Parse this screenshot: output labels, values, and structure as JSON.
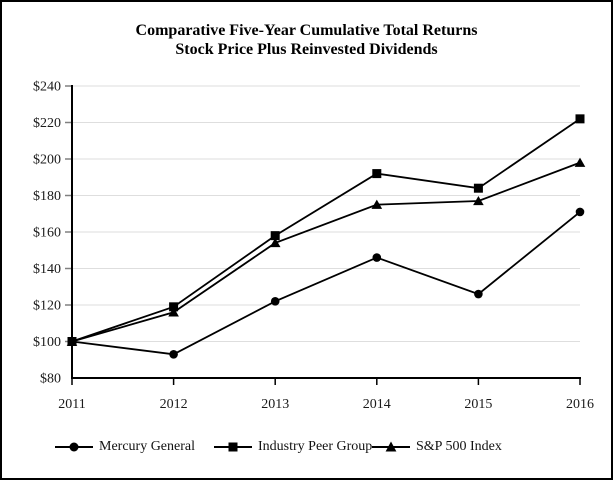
{
  "title": {
    "line1": "Comparative Five-Year Cumulative Total Returns",
    "line2": "Stock Price Plus Reinvested Dividends"
  },
  "chart_data": {
    "type": "line",
    "title": "Comparative Five-Year Cumulative Total Returns",
    "subtitle": "Stock Price Plus Reinvested Dividends",
    "categories": [
      "2011",
      "2012",
      "2013",
      "2014",
      "2015",
      "2016"
    ],
    "series": [
      {
        "name": "Mercury General",
        "marker": "circle",
        "color": "#000000",
        "values": [
          100,
          93,
          122,
          146,
          126,
          171
        ]
      },
      {
        "name": "Industry Peer Group",
        "marker": "square",
        "color": "#000000",
        "values": [
          100,
          119,
          158,
          192,
          184,
          222
        ]
      },
      {
        "name": "S&P 500 Index",
        "marker": "triangle",
        "color": "#000000",
        "values": [
          100,
          116,
          154,
          175,
          177,
          198
        ]
      }
    ],
    "ylim": [
      80,
      240
    ],
    "y_ticks": [
      80,
      100,
      120,
      140,
      160,
      180,
      200,
      220,
      240
    ],
    "y_tick_prefix": "$",
    "xlabel": "",
    "ylabel": "",
    "grid": "horizontal",
    "legend_position": "bottom",
    "colors": {
      "line": "#000000",
      "grid": "#dedede",
      "axis": "#000000",
      "y_tick_mark": "#808080",
      "x_tick_mark": "#000000",
      "label": "#1a1a1a"
    }
  },
  "legend": {
    "items": [
      {
        "label": "Mercury General",
        "marker": "circle"
      },
      {
        "label": "Industry Peer Group",
        "marker": "square"
      },
      {
        "label": "S&P 500 Index",
        "marker": "triangle"
      }
    ]
  }
}
